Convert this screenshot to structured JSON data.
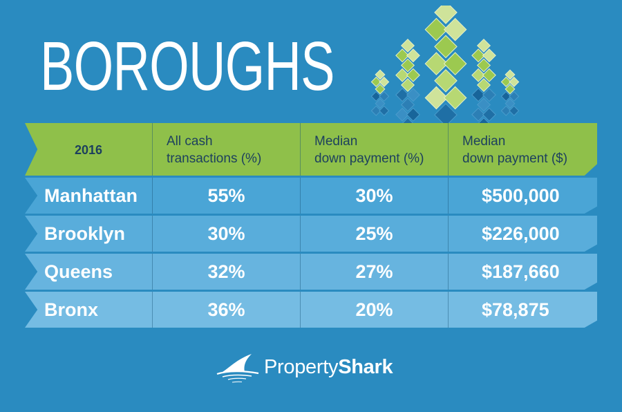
{
  "title": "BOROUGHS",
  "colors": {
    "background": "#2a8bc0",
    "header_bg": "#8fc04a",
    "header_text": "#1c3f5e",
    "row_text": "#ffffff",
    "row_shades": [
      "#4aa5d6",
      "#59addb",
      "#67b4df",
      "#75bce3"
    ]
  },
  "chart_data": {
    "type": "table",
    "columns": [
      "2016",
      "All cash transactions (%)",
      "Median down payment (%)",
      "Median down payment ($)"
    ],
    "header": [
      {
        "lines": [
          "2016"
        ]
      },
      {
        "lines": [
          "All cash",
          "transactions (%)"
        ]
      },
      {
        "lines": [
          "Median",
          "down payment (%)"
        ]
      },
      {
        "lines": [
          "Median",
          "down payment ($)"
        ]
      }
    ],
    "rows": [
      {
        "borough": "Manhattan",
        "cash": "55%",
        "down_pct": "30%",
        "down_usd": "$500,000"
      },
      {
        "borough": "Brooklyn",
        "cash": "30%",
        "down_pct": "25%",
        "down_usd": "$226,000"
      },
      {
        "borough": "Queens",
        "cash": "32%",
        "down_pct": "27%",
        "down_usd": "$187,660"
      },
      {
        "borough": "Bronx",
        "cash": "36%",
        "down_pct": "20%",
        "down_usd": "$78,875"
      }
    ]
  },
  "logo": {
    "word_light": "Property",
    "word_bold": "Shark",
    "icon": "shark-fin-icon"
  }
}
